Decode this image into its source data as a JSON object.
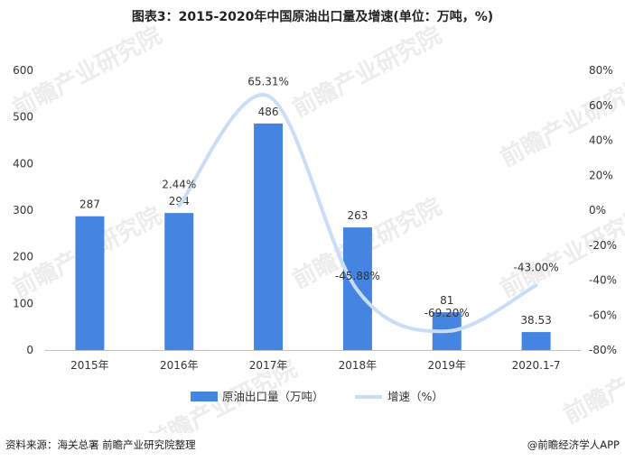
{
  "chart_data": {
    "type": "bar",
    "title": "图表3：2015-2020年中国原油出口量及增速(单位：万吨，%)",
    "categories": [
      "2015年",
      "2016年",
      "2017年",
      "2018年",
      "2019年",
      "2020.1-7"
    ],
    "series": [
      {
        "name": "原油出口量（万吨）",
        "type": "bar",
        "axis": "left",
        "values": [
          287,
          294,
          486,
          263,
          81,
          38.53
        ],
        "labels": [
          "287",
          "294",
          "486",
          "263",
          "81",
          "38.53"
        ],
        "color": "#4584e0"
      },
      {
        "name": "增速（%）",
        "type": "line",
        "axis": "right",
        "values": [
          null,
          2.44,
          65.31,
          -45.88,
          -69.2,
          -43.0
        ],
        "labels": [
          "",
          "2.44%",
          "65.31%",
          "-45.88%",
          "-69.20%",
          "-43.00%"
        ],
        "color": "#c9ddf6"
      }
    ],
    "y_left": {
      "min": 0,
      "max": 600,
      "ticks": [
        "0",
        "100",
        "200",
        "300",
        "400",
        "500",
        "600"
      ]
    },
    "y_right": {
      "min": -80,
      "max": 80,
      "ticks": [
        "-80%",
        "-60%",
        "-40%",
        "-20%",
        "0%",
        "20%",
        "40%",
        "60%",
        "80%"
      ]
    },
    "grid": false,
    "legend_position": "bottom"
  },
  "footer": {
    "source": "资料来源：海关总署   前瞻产业研究院整理",
    "credit": "@前瞻经济学人APP"
  },
  "watermark": "前瞻产业研究院"
}
